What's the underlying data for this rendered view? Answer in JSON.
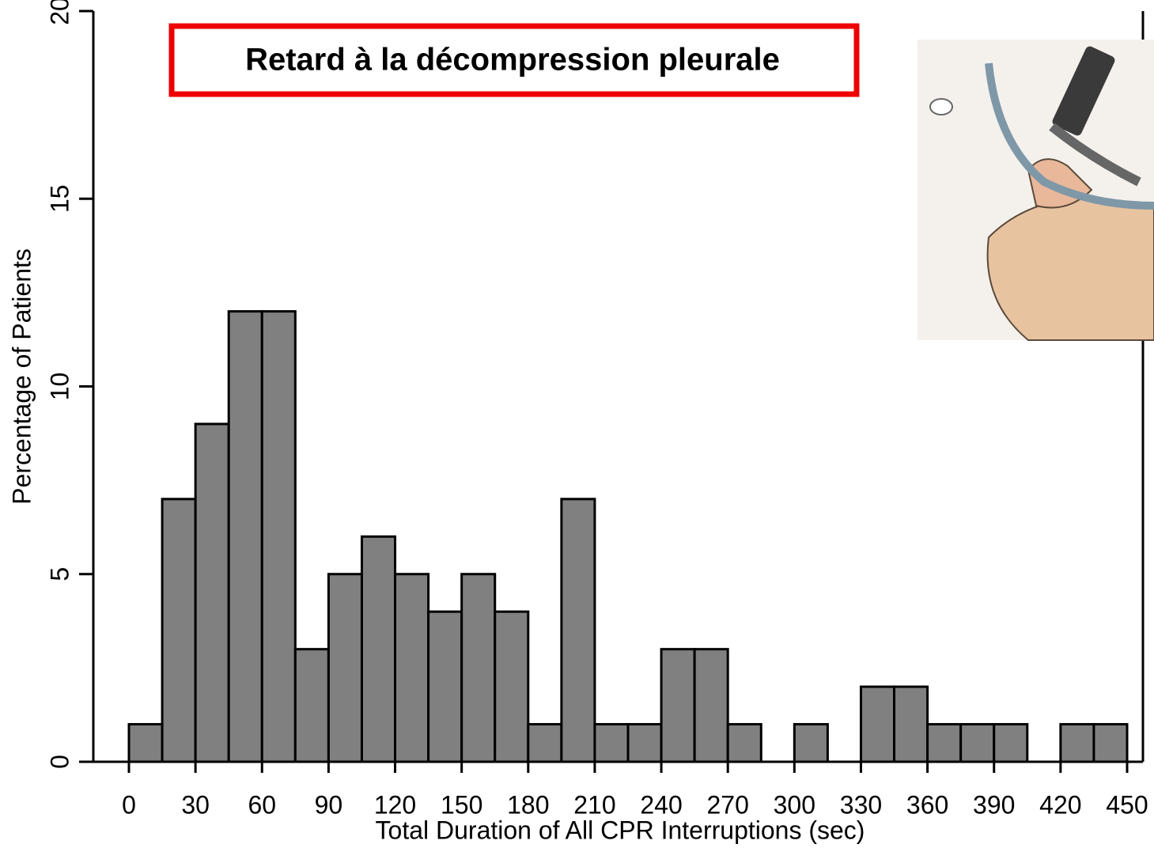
{
  "chart_data": {
    "type": "histogram",
    "title": "Retard à la décompression pleurale",
    "x_label": "Total Duration of All CPR Interruptions (sec)",
    "y_label": "Percentage of Patients",
    "bins": [
      0,
      15,
      30,
      45,
      60,
      75,
      90,
      105,
      120,
      135,
      150,
      165,
      180,
      195,
      210,
      225,
      240,
      255,
      270,
      285,
      300,
      315,
      330,
      345,
      360,
      375,
      390,
      405,
      420,
      435,
      450
    ],
    "values": [
      1,
      7,
      9,
      12,
      12,
      3,
      5,
      6,
      5,
      4,
      5,
      4,
      1,
      7,
      1,
      1,
      3,
      3,
      1,
      0,
      1,
      0,
      2,
      2,
      1,
      1,
      1,
      0,
      1,
      1
    ],
    "color": "#808080",
    "xlim": [
      0,
      450
    ],
    "xticks": [
      0,
      30,
      60,
      90,
      120,
      150,
      180,
      210,
      240,
      270,
      300,
      330,
      360,
      390,
      420,
      450
    ],
    "ylim": [
      0,
      20
    ],
    "yticks": [
      0,
      5,
      10,
      15,
      20
    ]
  }
}
